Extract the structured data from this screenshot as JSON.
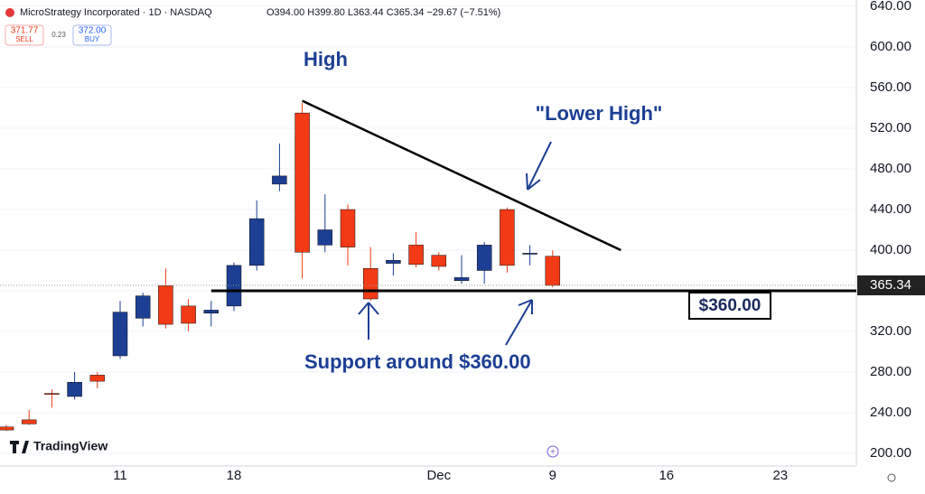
{
  "chart_data": {
    "type": "candlestick",
    "header": {
      "symbol": "MicroStrategy Incorporated · 1D · NASDAQ",
      "ohlc": "O394.00 H399.80 L363.44 C365.34 −29.67 (−7.51%)",
      "sell_price": "371.77",
      "sell": "SELL",
      "spread": "0.23",
      "buy_price": "372.00",
      "buy": "BUY"
    },
    "categories": [
      null,
      null,
      null,
      null,
      null,
      "11",
      null,
      null,
      null,
      null,
      "18",
      null,
      null,
      null,
      null,
      null,
      null,
      null,
      null,
      "Dec",
      null,
      null,
      null,
      null,
      "9",
      null,
      null,
      null,
      null,
      "16",
      null,
      null,
      null,
      null,
      "23",
      null,
      null,
      null
    ],
    "open": [
      226,
      233,
      259,
      256,
      277,
      296,
      333,
      365,
      345,
      338,
      345,
      385,
      465,
      535,
      405,
      440,
      382,
      387,
      405,
      395,
      370,
      380,
      440,
      396,
      394,
      null,
      null,
      null,
      null,
      null,
      null,
      null,
      null,
      null,
      null,
      null,
      null,
      null
    ],
    "high": [
      228,
      243,
      263,
      280,
      280,
      350,
      358,
      382,
      352,
      350,
      388,
      449,
      505,
      545,
      455,
      445,
      403,
      397,
      418,
      398,
      395,
      408,
      442,
      405,
      399.8,
      null,
      null,
      null,
      null,
      null,
      null,
      null,
      null,
      null,
      null,
      null,
      null,
      null
    ],
    "low": [
      222,
      228,
      245,
      253,
      264,
      293,
      325,
      323,
      320,
      325,
      340,
      380,
      458,
      372,
      398,
      385,
      350,
      375,
      383,
      380,
      367,
      367,
      378,
      385,
      363.44,
      null,
      null,
      null,
      null,
      null,
      null,
      null,
      null,
      null,
      null,
      null,
      null,
      null
    ],
    "close": [
      223,
      229,
      258,
      270,
      271,
      339,
      355,
      327,
      328,
      341,
      385,
      431,
      473,
      398,
      420,
      403,
      352,
      390,
      386,
      384,
      373,
      405,
      385,
      397,
      365.34,
      null,
      null,
      null,
      null,
      null,
      null,
      null,
      null,
      null,
      null,
      null,
      null,
      null
    ],
    "up_color": "#1c3f94",
    "down_color": "#f23b16",
    "ylim": [
      200,
      640
    ],
    "yticks": [
      {
        "value": 200,
        "label": "200.00"
      },
      {
        "value": 240,
        "label": "240.00"
      },
      {
        "value": 280,
        "label": "280.00"
      },
      {
        "value": 320,
        "label": "320.00"
      },
      {
        "value": 360,
        "label": "360.00"
      },
      {
        "value": 400,
        "label": "400.00"
      },
      {
        "value": 440,
        "label": "440.00"
      },
      {
        "value": 480,
        "label": "480.00"
      },
      {
        "value": 520,
        "label": "520.00"
      },
      {
        "value": 560,
        "label": "560.00"
      },
      {
        "value": 600,
        "label": "600.00"
      },
      {
        "value": 640,
        "label": "640.00"
      }
    ],
    "grid": true,
    "last_price": 365.34,
    "support": {
      "value": 360,
      "label": "$360.00",
      "from_index": 9
    },
    "trendline": {
      "from": [
        13,
        547
      ],
      "to": [
        27,
        400
      ]
    },
    "annotations": [
      "High",
      "\"Lower High\"",
      "Support around $360.00"
    ],
    "logo": "TradingView"
  }
}
